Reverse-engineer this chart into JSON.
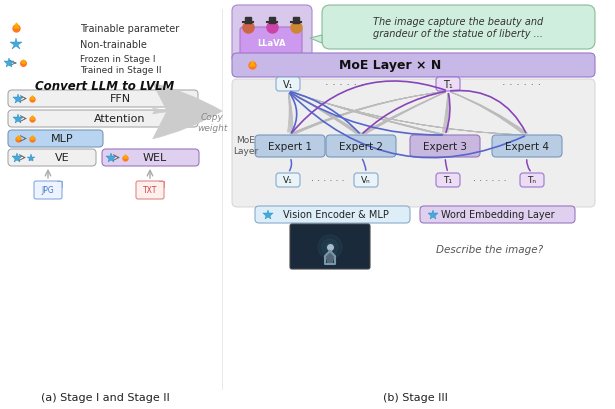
{
  "bg_color": "#ffffff",
  "title_a": "(a) Stage I and Stage II",
  "title_b": "(b) Stage III",
  "speech_text": "The image capture the beauty and\ngrandeur of the statue of liberty ...",
  "convert_title": "Convert LLM to LVLM",
  "expert_labels": [
    "Expert 1",
    "Expert 2",
    "Expert 3",
    "Expert 4"
  ],
  "moe_label": "MoE Layer × N",
  "leg_trainable": "Trainable parameter",
  "leg_nontrain": "Non-trainable",
  "leg_frozen": "Frozen in Stage I\nTrained in Stage II",
  "copy_weight": "Copy\nweight",
  "ve_mlp_label": "Vision Encoder & MLP",
  "wel_label": "Word Embedding Layer",
  "describe_text": "Describe the image?",
  "moe_layer_label": "MoE\nLayer",
  "ffn_label": "FFN",
  "attn_label": "Attention",
  "mlp_label": "MLP",
  "ve_label": "VE",
  "wel_short": "WEL",
  "colors": {
    "bg": "#ffffff",
    "left_box_bg": "#f0f0f0",
    "left_box_border": "#aaaaaa",
    "mlp_bg": "#b8d4f0",
    "mlp_border": "#7799bb",
    "wel_bg": "#e0d0f0",
    "wel_border": "#9977bb",
    "moe_bar_bg": "#c8b8e8",
    "moe_bar_border": "#9977cc",
    "speech_bg": "#d0eedd",
    "speech_border": "#88bb99",
    "llama_bg": "#d8c8ec",
    "llama_border": "#aa88cc",
    "expert_blue_bg": "#b8cce4",
    "expert_blue_border": "#7799bb",
    "expert_purple_bg": "#c8b8e0",
    "expert_purple_border": "#9977bb",
    "token_v_bg": "#e8f4f8",
    "token_v_border": "#88aacc",
    "token_t_bg": "#ecdcf4",
    "token_t_border": "#9977cc",
    "moe_bg_panel": "#e8e8e8",
    "moe_bg_border": "#cccccc",
    "ve_mlp_bg": "#ddeef8",
    "ve_mlp_border": "#88aacc",
    "arrow_gray": "#bbbbbb",
    "blue_line": "#5566cc",
    "purple_line": "#8844bb",
    "gray_line": "#bbbbbb",
    "text_dark": "#222222",
    "text_gray": "#666666",
    "text_italic_gray": "#888888"
  }
}
